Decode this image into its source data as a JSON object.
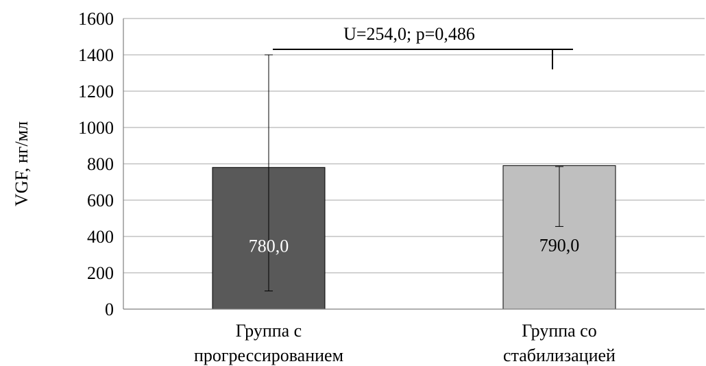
{
  "chart_data": {
    "type": "bar",
    "ylabel": "VGF, нг/мл",
    "ylim": [
      0,
      1600
    ],
    "yticks": [
      0,
      200,
      400,
      600,
      800,
      1000,
      1200,
      1400,
      1600
    ],
    "grid": true,
    "categories": [
      [
        "Группа с",
        "прогрессированием"
      ],
      [
        "Группа со",
        "стабилизацией"
      ]
    ],
    "values": [
      780,
      790
    ],
    "value_labels": [
      "780,0",
      "790,0"
    ],
    "error_bars": [
      {
        "low": 100,
        "high": 1400
      },
      {
        "low": 455,
        "high": 785
      }
    ],
    "bar_colors": [
      "#595959",
      "#bfbfbf"
    ],
    "label_colors": [
      "#ffffff",
      "#000000"
    ],
    "annotation": {
      "text": "U=254,0; p=0,486",
      "from_category": 0,
      "to_category": 1,
      "y": 1430,
      "tick_to": 1320
    }
  }
}
